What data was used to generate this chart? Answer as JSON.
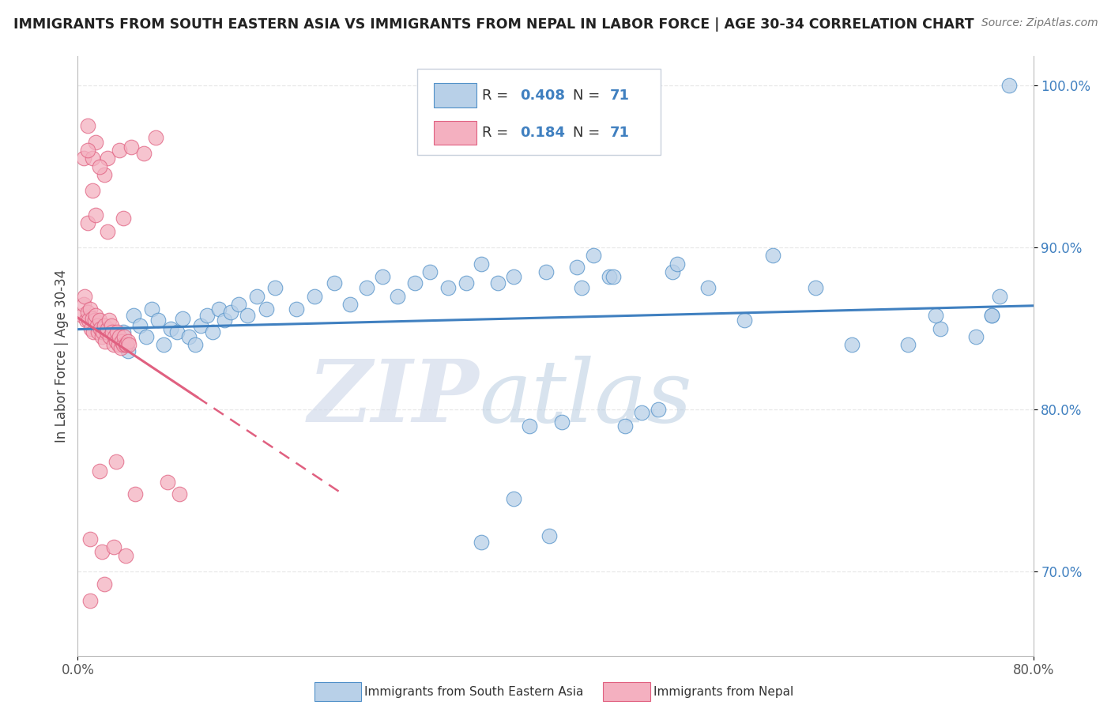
{
  "title": "IMMIGRANTS FROM SOUTH EASTERN ASIA VS IMMIGRANTS FROM NEPAL IN LABOR FORCE | AGE 30-34 CORRELATION CHART",
  "source": "Source: ZipAtlas.com",
  "ylabel": "In Labor Force | Age 30-34",
  "R_blue": 0.408,
  "R_pink": 0.184,
  "N": 71,
  "blue_color": "#b8d0e8",
  "pink_color": "#f4b0c0",
  "blue_edge_color": "#5090c8",
  "pink_edge_color": "#e06080",
  "blue_line_color": "#4080c0",
  "pink_line_color": "#e06080",
  "watermark": "ZIPatlas",
  "watermark_color_zip": "#c0cce0",
  "watermark_color_atlas": "#a8bcd8",
  "xlim": [
    0.0,
    0.8
  ],
  "ylim": [
    0.648,
    1.018
  ],
  "yticks": [
    0.7,
    0.8,
    0.9,
    1.0
  ],
  "ytick_labels": [
    "70.0%",
    "80.0%",
    "90.0%",
    "100.0%"
  ],
  "grid_color": "#e8e8e8",
  "legend_box_color": "#f0f4f8",
  "legend_border_color": "#c0c8d8"
}
